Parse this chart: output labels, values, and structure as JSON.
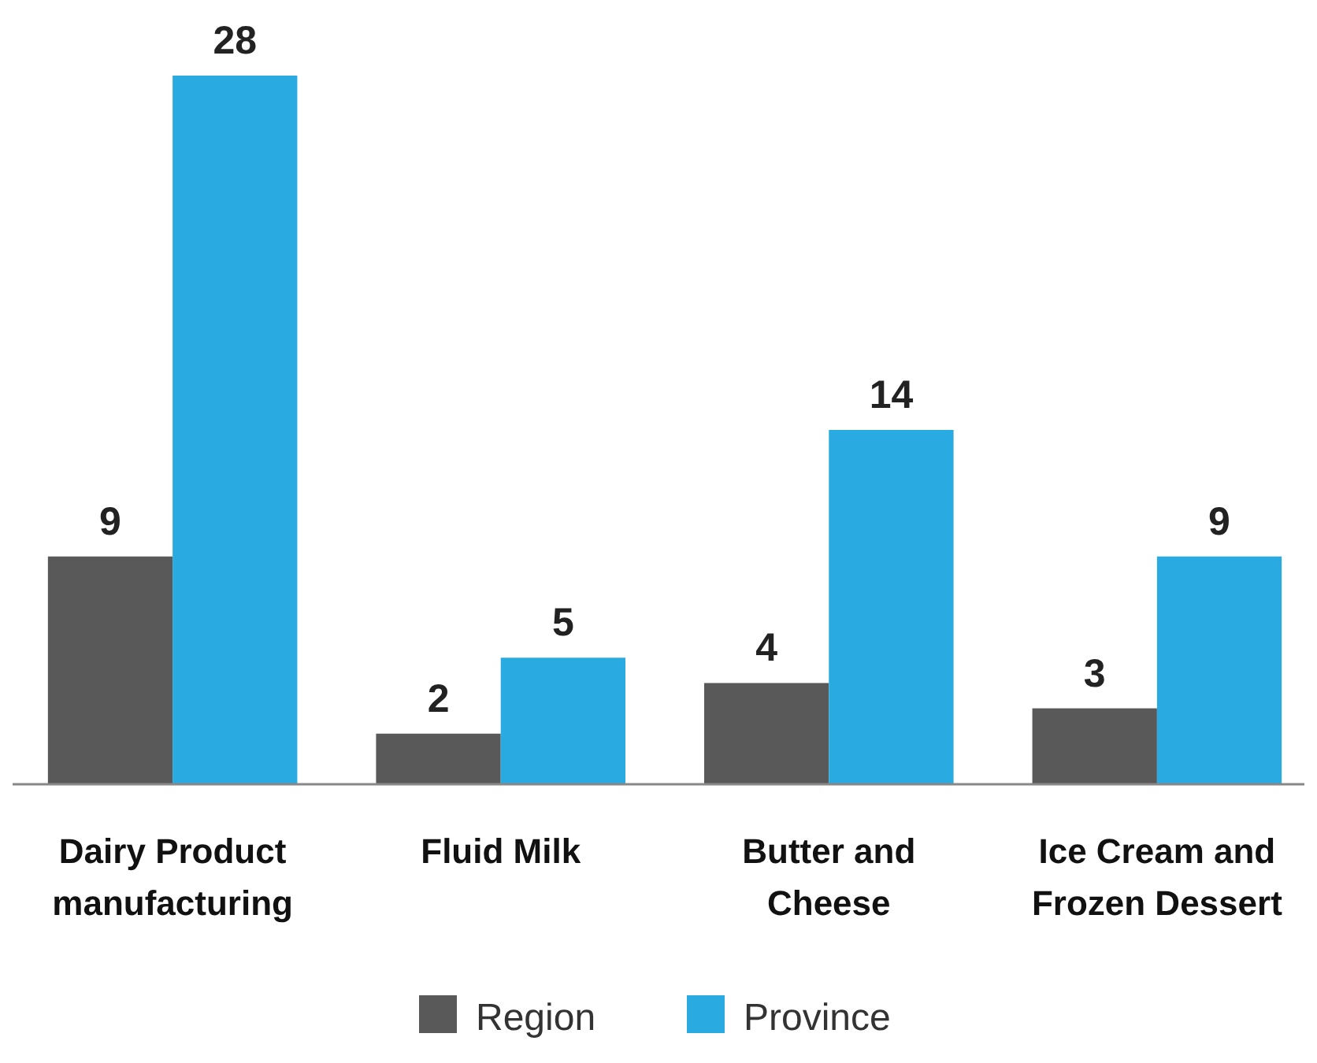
{
  "chart_data": {
    "type": "bar",
    "categories": [
      "Dairy Product manufacturing",
      "Fluid Milk",
      "Butter and Cheese",
      "Ice Cream and Frozen Dessert"
    ],
    "series": [
      {
        "name": "Region",
        "color": "#595959",
        "values": [
          9,
          2,
          4,
          3
        ]
      },
      {
        "name": "Province",
        "color": "#29abe2",
        "values": [
          28,
          5,
          14,
          9
        ]
      }
    ],
    "relative": false,
    "data_labels": true,
    "legend": "bottom",
    "grid": false
  }
}
